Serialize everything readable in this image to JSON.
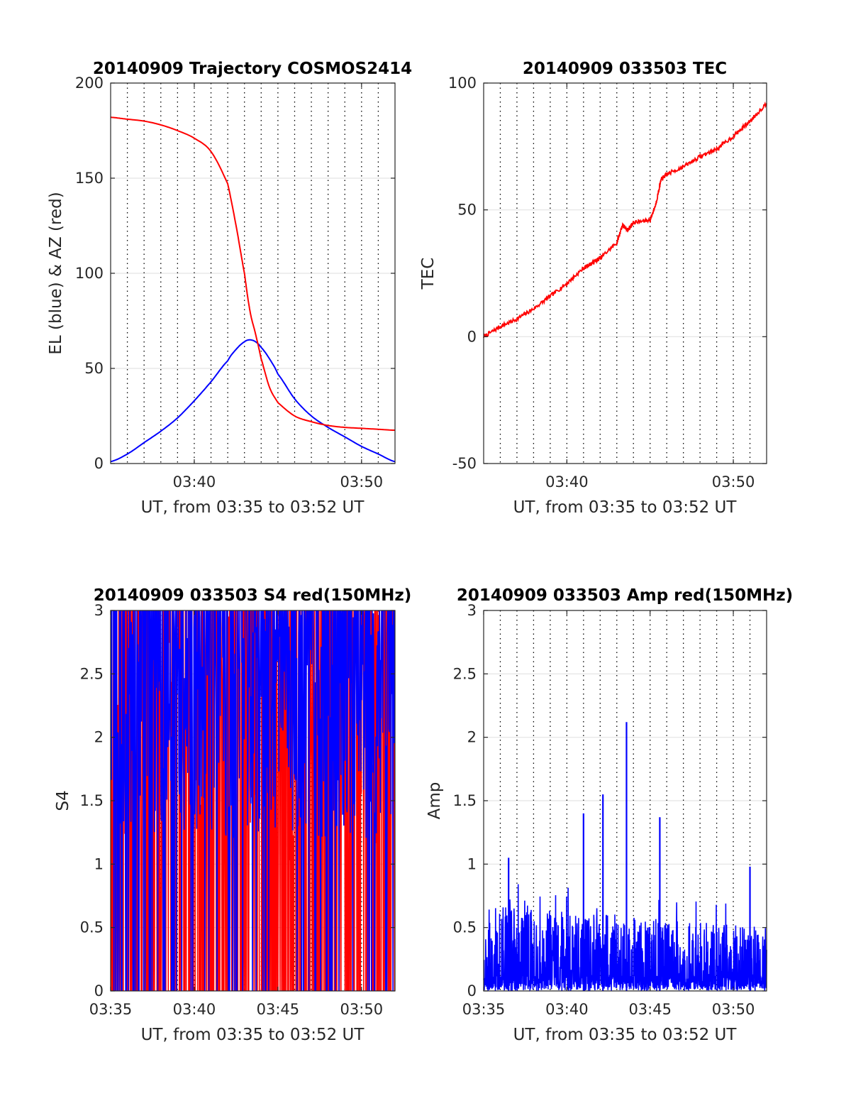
{
  "chart_data": [
    {
      "type": "line",
      "title": "20140909 Trajectory COSMOS2414",
      "xlabel": "UT, from 03:35 to 03:52 UT",
      "ylabel": "EL (blue) & AZ (red)",
      "xlim": [
        "03:35",
        "03:52"
      ],
      "ylim": [
        0,
        200
      ],
      "xticks": [
        "03:40",
        "03:50"
      ],
      "yticks": [
        0,
        50,
        100,
        150,
        200
      ],
      "grid": "dotted vertical lines every minute, light horizontal lines at y ticks",
      "x": [
        "03:35",
        "03:36",
        "03:37",
        "03:38",
        "03:39",
        "03:40",
        "03:41",
        "03:42",
        "03:42:30",
        "03:43",
        "03:43:20",
        "03:43:40",
        "03:44",
        "03:44:30",
        "03:45",
        "03:46",
        "03:47",
        "03:48",
        "03:49",
        "03:50",
        "03:51",
        "03:52"
      ],
      "series": [
        {
          "color": "#0000ff",
          "values": [
            1,
            5,
            11,
            17,
            24,
            33,
            43,
            54,
            60,
            64,
            65,
            64,
            61,
            55,
            47,
            34,
            25,
            19,
            14,
            9,
            5,
            1
          ]
        },
        {
          "color": "#ff0000",
          "values": [
            182,
            181,
            180,
            178,
            175,
            171,
            164,
            147,
            125,
            100,
            80,
            68,
            55,
            40,
            32,
            25,
            22,
            20,
            19,
            18.5,
            18,
            17.5
          ]
        }
      ]
    },
    {
      "type": "line",
      "title": "20140909 033503 TEC",
      "xlabel": "UT, from 03:35 to 03:52 UT",
      "ylabel": "TEC",
      "xlim": [
        "03:35",
        "03:52"
      ],
      "ylim": [
        -50,
        100
      ],
      "xticks": [
        "03:40",
        "03:50"
      ],
      "yticks": [
        -50,
        0,
        50,
        100
      ],
      "grid": "dotted vertical lines every minute, light horizontal lines at y ticks",
      "x": [
        "03:35",
        "03:36",
        "03:37",
        "03:38",
        "03:39",
        "03:40",
        "03:41",
        "03:41:30",
        "03:42",
        "03:43",
        "03:43:20",
        "03:43:40",
        "03:44",
        "03:45",
        "03:45:20",
        "03:45:40",
        "03:46",
        "03:47",
        "03:48",
        "03:49",
        "03:50",
        "03:51",
        "03:52"
      ],
      "series": [
        {
          "color": "#ff0000",
          "values": [
            0,
            4,
            7,
            11,
            16,
            21,
            27,
            29,
            31,
            37,
            44,
            42,
            45,
            46,
            52,
            62,
            64,
            67,
            71,
            74,
            79,
            85,
            92
          ]
        }
      ]
    },
    {
      "type": "line",
      "title": "20140909 033503 S4 red(150MHz)",
      "xlabel": "UT, from 03:35 to 03:52 UT",
      "ylabel": "S4",
      "xlim": [
        "03:35",
        "03:52"
      ],
      "ylim": [
        0,
        3
      ],
      "xticks": [
        "03:35",
        "03:40",
        "03:45",
        "03:50"
      ],
      "yticks": [
        0,
        0.5,
        1,
        1.5,
        2,
        2.5,
        3
      ],
      "grid": "dotted vertical lines every minute, light horizontal lines at y ticks",
      "series": [
        {
          "color": "#ff0000",
          "description_of_values": "noisy S4 values mostly between 0 and 3, saturating at 3"
        },
        {
          "color": "#0000ff",
          "description_of_values": "noisy S4 values mostly between 1.3 and 3, saturating at 3"
        }
      ]
    },
    {
      "type": "line",
      "title": "20140909 033503 Amp red(150MHz)",
      "xlabel": "UT, from 03:35 to 03:52 UT",
      "ylabel": "Amp",
      "xlim": [
        "03:35",
        "03:52"
      ],
      "ylim": [
        0,
        3
      ],
      "xticks": [
        "03:35",
        "03:40",
        "03:45",
        "03:50"
      ],
      "yticks": [
        0,
        0.5,
        1,
        1.5,
        2,
        2.5,
        3
      ],
      "grid": "dotted vertical lines every minute, light horizontal lines at y ticks",
      "peaks": [
        {
          "x": "03:36:30",
          "y": 1.05
        },
        {
          "x": "03:41",
          "y": 1.4
        },
        {
          "x": "03:42:10",
          "y": 1.55
        },
        {
          "x": "03:43:35",
          "y": 2.12
        },
        {
          "x": "03:45:35",
          "y": 1.37
        },
        {
          "x": "03:51",
          "y": 0.98
        }
      ],
      "series": [
        {
          "color": "#0000ff",
          "description_of_values": "dense amplitude values between 0 and about 0.8 with isolated peaks"
        }
      ]
    }
  ]
}
